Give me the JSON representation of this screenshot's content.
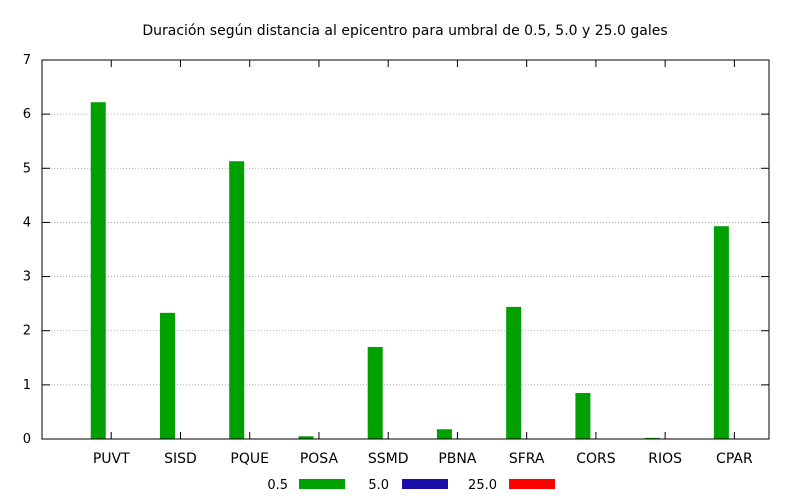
{
  "chart_data": {
    "type": "bar",
    "title": "Duración según distancia al epicentro para umbral de 0.5, 5.0 y 25.0 gales",
    "xlabel": "",
    "ylabel": "",
    "ylim": [
      0,
      7
    ],
    "yticks": [
      "0",
      "1",
      "2",
      "3",
      "4",
      "5",
      "6",
      "7"
    ],
    "grid": true,
    "legend_position": "bottom",
    "categories": [
      "PUVT",
      "SISD",
      "PQUE",
      "POSA",
      "SSMD",
      "PBNA",
      "SFRA",
      "CORS",
      "RIOS",
      "CPAR"
    ],
    "series": [
      {
        "name": "0.5",
        "color": "#00a000",
        "values": [
          6.22,
          2.33,
          5.13,
          0.05,
          1.7,
          0.18,
          2.44,
          0.85,
          0.02,
          3.93
        ]
      },
      {
        "name": "5.0",
        "color": "#1a0fa8",
        "values": [
          0,
          0,
          0,
          0,
          0,
          0,
          0,
          0,
          0,
          0
        ]
      },
      {
        "name": "25.0",
        "color": "#ff0000",
        "values": [
          0,
          0,
          0,
          0,
          0,
          0,
          0,
          0,
          0,
          0
        ]
      }
    ]
  }
}
